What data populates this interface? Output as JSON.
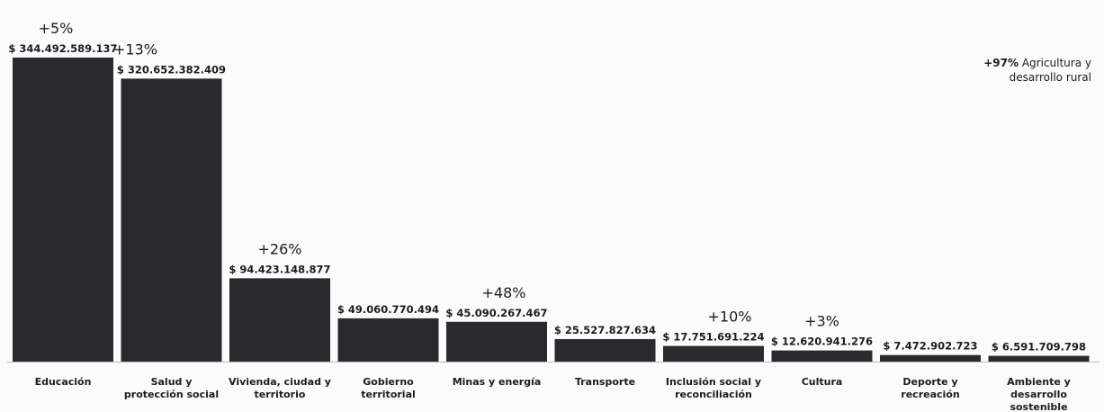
{
  "chart_data": {
    "type": "bar",
    "categories": [
      [
        "Educación"
      ],
      [
        "Salud y",
        "protección social"
      ],
      [
        "Vivienda, ciudad y",
        "territorio"
      ],
      [
        "Gobierno",
        "territorial"
      ],
      [
        "Minas y energía"
      ],
      [
        "Transporte"
      ],
      [
        "Inclusión social y",
        "reconciliación"
      ],
      [
        "Cultura"
      ],
      [
        "Deporte y",
        "recreación"
      ],
      [
        "Ambiente y",
        "desarrollo",
        "sostenible"
      ]
    ],
    "values": [
      344492589137,
      320652382409,
      94423148877,
      49060770494,
      45090267467,
      25527827634,
      17751691224,
      12620941276,
      7472902723,
      6591709798
    ],
    "value_labels": [
      "$ 344.492.589.137",
      "$ 320.652.382.409",
      "$ 94.423.148.877",
      "$ 49.060.770.494",
      "$ 45.090.267.467",
      "$ 25.527.827.634",
      "$ 17.751.691.224",
      "$ 12.620.941.276",
      "$ 7.472.902.723",
      "$ 6.591.709.798"
    ],
    "growth_labels": [
      "+5%",
      "+13%",
      "+26%",
      "",
      "+48%",
      "",
      "+10%",
      "+3%",
      "",
      ""
    ],
    "bar_color": "#2a2a2e",
    "ylim": [
      0,
      344492589137
    ],
    "grid": false,
    "note": {
      "pct": "+97%",
      "text_line1": "Agricultura y",
      "text_line2": "desarrollo rural"
    }
  }
}
